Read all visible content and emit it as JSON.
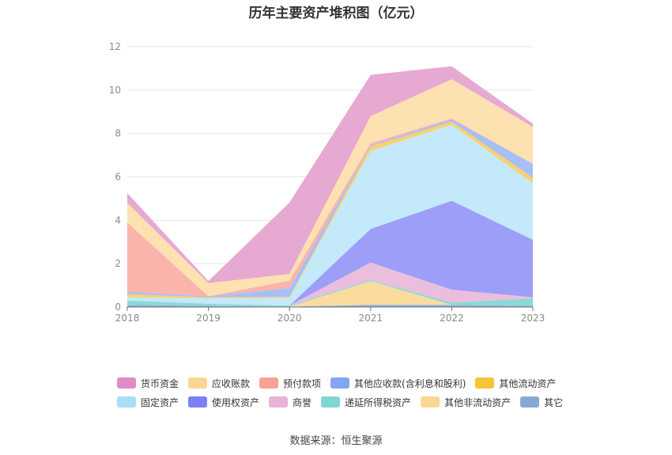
{
  "title": "历年主要资产堆积图（亿元）",
  "source": "数据来源：恒生聚源",
  "chart_data": {
    "type": "area",
    "stacked": true,
    "categories": [
      "2018",
      "2019",
      "2020",
      "2021",
      "2022",
      "2023"
    ],
    "ylim": [
      0,
      12
    ],
    "yticks": [
      0,
      2,
      4,
      6,
      8,
      10,
      12
    ],
    "grid": true,
    "legend_position": "bottom",
    "series": [
      {
        "name": "其它",
        "color": "#8eaed8",
        "values": [
          0.1,
          0.05,
          0.02,
          0.1,
          0.1,
          0.05
        ]
      },
      {
        "name": "其他非流动资产",
        "color": "#fcdc9e",
        "values": [
          0.0,
          0.0,
          0.0,
          1.1,
          0.0,
          0.0
        ]
      },
      {
        "name": "递延所得税资产",
        "color": "#89dad6",
        "values": [
          0.2,
          0.1,
          0.05,
          0.05,
          0.1,
          0.35
        ]
      },
      {
        "name": "商誉",
        "color": "#ebbedd",
        "values": [
          0.0,
          0.0,
          0.0,
          0.8,
          0.6,
          0.05
        ]
      },
      {
        "name": "使用权资产",
        "color": "#9c9ef7",
        "values": [
          0.0,
          0.0,
          0.0,
          1.55,
          4.1,
          2.65
        ]
      },
      {
        "name": "固定资产",
        "color": "#c3e9fb",
        "values": [
          0.15,
          0.25,
          0.35,
          3.6,
          3.5,
          2.6
        ]
      },
      {
        "name": "其他流动资产",
        "color": "#fbd16f",
        "values": [
          0.15,
          0.05,
          0.05,
          0.2,
          0.15,
          0.25
        ]
      },
      {
        "name": "其他应收款(含利息和股利)",
        "color": "#a8bff5",
        "values": [
          0.1,
          0.05,
          0.4,
          0.05,
          0.1,
          0.65
        ]
      },
      {
        "name": "预付款项",
        "color": "#fab4ab",
        "values": [
          3.2,
          0.0,
          0.35,
          0.1,
          0.05,
          0.0
        ]
      },
      {
        "name": "应收账款",
        "color": "#fde1b0",
        "values": [
          0.9,
          0.6,
          0.3,
          1.25,
          1.8,
          1.7
        ]
      },
      {
        "name": "货币资金",
        "color": "#e6a9d1",
        "values": [
          0.45,
          0.1,
          3.3,
          1.9,
          0.6,
          0.15
        ]
      }
    ]
  },
  "legend": [
    {
      "name": "货币资金",
      "color": "#e08bc6"
    },
    {
      "name": "应收账款",
      "color": "#fcd595"
    },
    {
      "name": "预付款项",
      "color": "#f9a193"
    },
    {
      "name": "其他应收款(含利息和股利)",
      "color": "#86a4f5"
    },
    {
      "name": "其他流动资产",
      "color": "#f8c336"
    },
    {
      "name": "固定资产",
      "color": "#a9dff8"
    },
    {
      "name": "使用权资产",
      "color": "#7b80f4"
    },
    {
      "name": "商誉",
      "color": "#e8b3d8"
    },
    {
      "name": "递延所得税资产",
      "color": "#7fd6d3"
    },
    {
      "name": "其他非流动资产",
      "color": "#fbd693"
    },
    {
      "name": "其它",
      "color": "#88a9d8"
    }
  ]
}
